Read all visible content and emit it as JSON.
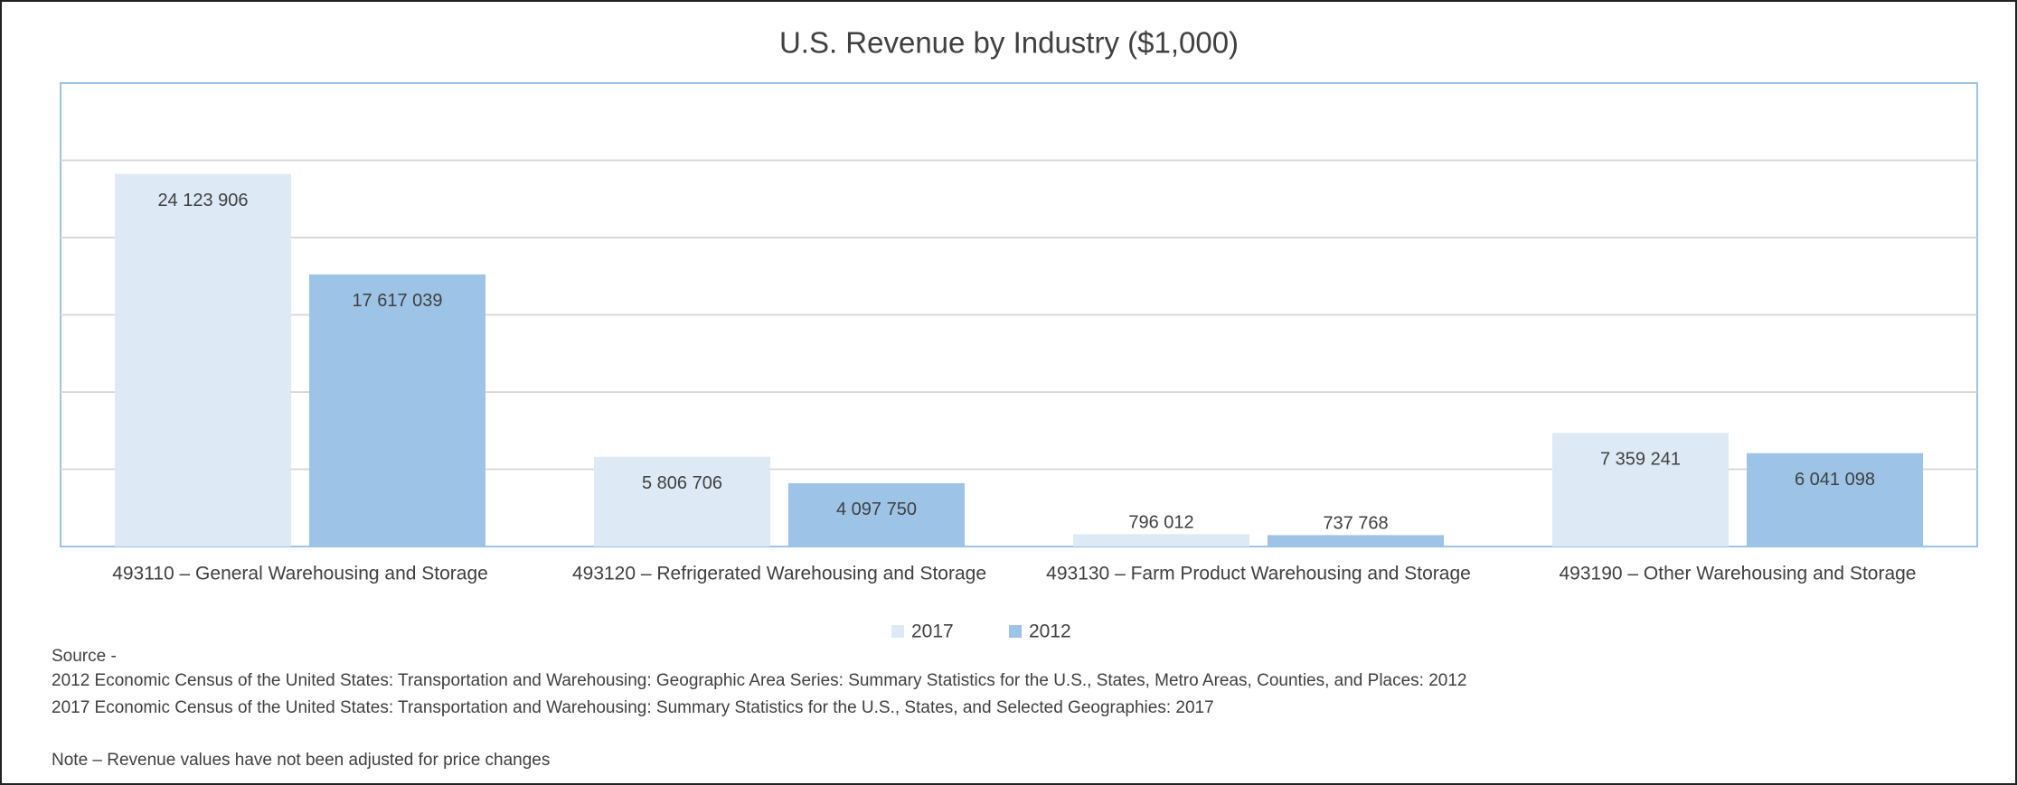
{
  "chart_data": {
    "type": "bar",
    "title": "U.S. Revenue by Industry ($1,000)",
    "categories": [
      "493110 – General Warehousing and Storage",
      "493120 – Refrigerated Warehousing and Storage",
      "493130 – Farm Product Warehousing and Storage",
      "493190 – Other Warehousing and Storage"
    ],
    "series": [
      {
        "name": "2017",
        "color": "#ddeaf6",
        "values": [
          24123906,
          5806706,
          796012,
          7359241
        ],
        "value_labels": [
          "24 123 906",
          "5 806 706",
          "796 012",
          "7 359 241"
        ]
      },
      {
        "name": "2012",
        "color": "#9dc3e6",
        "values": [
          17617039,
          4097750,
          737768,
          6041098
        ],
        "value_labels": [
          "17 617 039",
          "4 097 750",
          "737 768",
          "6 041 098"
        ]
      }
    ],
    "ylim": [
      0,
      30000000
    ],
    "yticks": [
      0,
      5000000,
      10000000,
      15000000,
      20000000,
      25000000
    ],
    "grid": true,
    "legend": "bottom",
    "notes": [
      "Source -",
      "2012 Economic Census of the United States: Transportation and Warehousing: Geographic Area Series: Summary Statistics for the U.S., States, Metro Areas, Counties, and Places: 2012",
      "2017 Economic Census of the United States: Transportation and Warehousing: Summary Statistics for the U.S., States, and Selected Geographies: 2017",
      "Note – Revenue values have not been adjusted for price changes"
    ]
  }
}
